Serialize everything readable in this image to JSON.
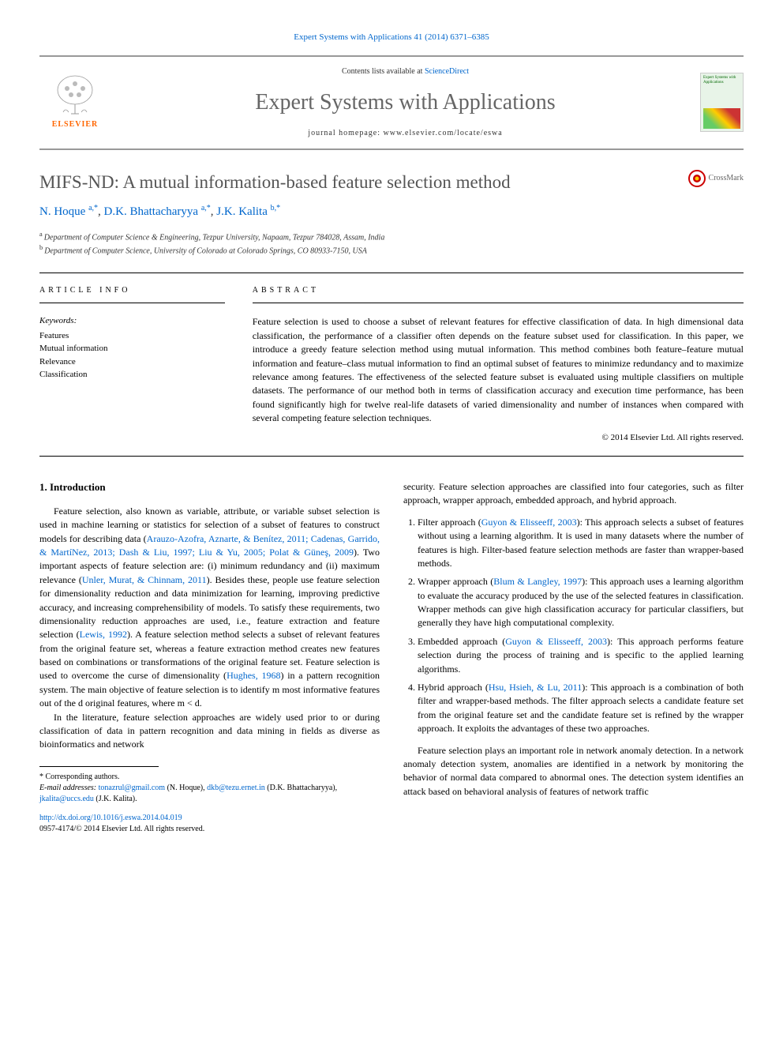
{
  "citation": "Expert Systems with Applications 41 (2014) 6371–6385",
  "header": {
    "contents_prefix": "Contents lists available at ",
    "contents_link": "ScienceDirect",
    "journal": "Expert Systems with Applications",
    "homepage_prefix": "journal homepage: ",
    "homepage": "www.elsevier.com/locate/eswa",
    "publisher_name": "ELSEVIER",
    "cover_text": "Expert Systems with Applications"
  },
  "crossmark": "CrossMark",
  "title": "MIFS-ND: A mutual information-based feature selection method",
  "authors_html": "N. Hoque <sup>a,*</sup>, D.K. Bhattacharyya <sup>a,*</sup>, J.K. Kalita <sup>b,*</sup>",
  "authors": [
    {
      "name": "N. Hoque",
      "affil": "a",
      "corr": true
    },
    {
      "name": "D.K. Bhattacharyya",
      "affil": "a",
      "corr": true
    },
    {
      "name": "J.K. Kalita",
      "affil": "b",
      "corr": true
    }
  ],
  "affiliations": [
    {
      "mark": "a",
      "text": "Department of Computer Science & Engineering, Tezpur University, Napaam, Tezpur 784028, Assam, India"
    },
    {
      "mark": "b",
      "text": "Department of Computer Science, University of Colorado at Colorado Springs, CO 80933-7150, USA"
    }
  ],
  "article_info": {
    "heading": "ARTICLE INFO",
    "keywords_label": "Keywords:",
    "keywords": [
      "Features",
      "Mutual information",
      "Relevance",
      "Classification"
    ]
  },
  "abstract": {
    "heading": "ABSTRACT",
    "text": "Feature selection is used to choose a subset of relevant features for effective classification of data. In high dimensional data classification, the performance of a classifier often depends on the feature subset used for classification. In this paper, we introduce a greedy feature selection method using mutual information. This method combines both feature–feature mutual information and feature–class mutual information to find an optimal subset of features to minimize redundancy and to maximize relevance among features. The effectiveness of the selected feature subset is evaluated using multiple classifiers on multiple datasets. The performance of our method both in terms of classification accuracy and execution time performance, has been found significantly high for twelve real-life datasets of varied dimensionality and number of instances when compared with several competing feature selection techniques.",
    "copyright": "© 2014 Elsevier Ltd. All rights reserved."
  },
  "section1": {
    "heading": "1. Introduction",
    "para1_pre": "Feature selection, also known as variable, attribute, or variable subset selection is used in machine learning or statistics for selection of a subset of features to construct models for describing data (",
    "para1_cite1": "Arauzo-Azofra, Aznarte, & Benítez, 2011; Cadenas, Garrido, & MartíNez, 2013; Dash & Liu, 1997; Liu & Yu, 2005; Polat & Güneş, 2009",
    "para1_mid1": "). Two important aspects of feature selection are: (i) minimum redundancy and (ii) maximum relevance (",
    "para1_cite2": "Unler, Murat, & Chinnam, 2011",
    "para1_mid2": "). Besides these, people use feature selection for dimensionality reduction and data minimization for learning, improving predictive accuracy, and increasing comprehensibility of models. To satisfy these requirements, two dimensionality reduction approaches are used, i.e., feature extraction and feature selection (",
    "para1_cite3": "Lewis, 1992",
    "para1_mid3": "). A feature selection method selects a subset of relevant features from the original feature set, whereas a feature extraction method creates new features based on combinations or transformations of the original feature set. Feature selection is used to overcome the curse of dimensionality (",
    "para1_cite4": "Hughes, 1968",
    "para1_end": ") in a pattern recognition system. The main objective of feature selection is to identify m most informative features out of the d original features, where m < d.",
    "para2": "In the literature, feature selection approaches are widely used prior to or during classification of data in pattern recognition and data mining in fields as diverse as bioinformatics and network",
    "col2_top": "security. Feature selection approaches are classified into four categories, such as filter approach, wrapper approach, embedded approach, and hybrid approach.",
    "approaches": [
      {
        "label": "Filter approach",
        "cite": "Guyon & Elisseeff, 2003",
        "text": ": This approach selects a subset of features without using a learning algorithm. It is used in many datasets where the number of features is high. Filter-based feature selection methods are faster than wrapper-based methods."
      },
      {
        "label": "Wrapper approach",
        "cite": "Blum & Langley, 1997",
        "text": ": This approach uses a learning algorithm to evaluate the accuracy produced by the use of the selected features in classification. Wrapper methods can give high classification accuracy for particular classifiers, but generally they have high computational complexity."
      },
      {
        "label": "Embedded approach",
        "cite": "Guyon & Elisseeff, 2003",
        "text": ": This approach performs feature selection during the process of training and is specific to the applied learning algorithms."
      },
      {
        "label": "Hybrid approach",
        "cite": "Hsu, Hsieh, & Lu, 2011",
        "text": ": This approach is a combination of both filter and wrapper-based methods. The filter approach selects a candidate feature set from the original feature set and the candidate feature set is refined by the wrapper approach. It exploits the advantages of these two approaches."
      }
    ],
    "para3": "Feature selection plays an important role in network anomaly detection. In a network anomaly detection system, anomalies are identified in a network by monitoring the behavior of normal data compared to abnormal ones. The detection system identifies an attack based on behavioral analysis of features of network traffic"
  },
  "footnotes": {
    "corr": "* Corresponding authors.",
    "emails_label": "E-mail addresses:",
    "emails": [
      {
        "addr": "tonazrul@gmail.com",
        "who": "(N. Hoque)"
      },
      {
        "addr": "dkb@tezu.ernet.in",
        "who": "(D.K. Bhattacharyya)"
      },
      {
        "addr": "jkalita@uccs.edu",
        "who": "(J.K. Kalita)"
      }
    ]
  },
  "doi": {
    "url": "http://dx.doi.org/10.1016/j.eswa.2014.04.019",
    "issn": "0957-4174/© 2014 Elsevier Ltd. All rights reserved."
  },
  "colors": {
    "link": "#0066cc",
    "text": "#000000",
    "heading_gray": "#555555",
    "journal_gray": "#666666",
    "elsevier_orange": "#ff6600",
    "rule": "#999999"
  }
}
